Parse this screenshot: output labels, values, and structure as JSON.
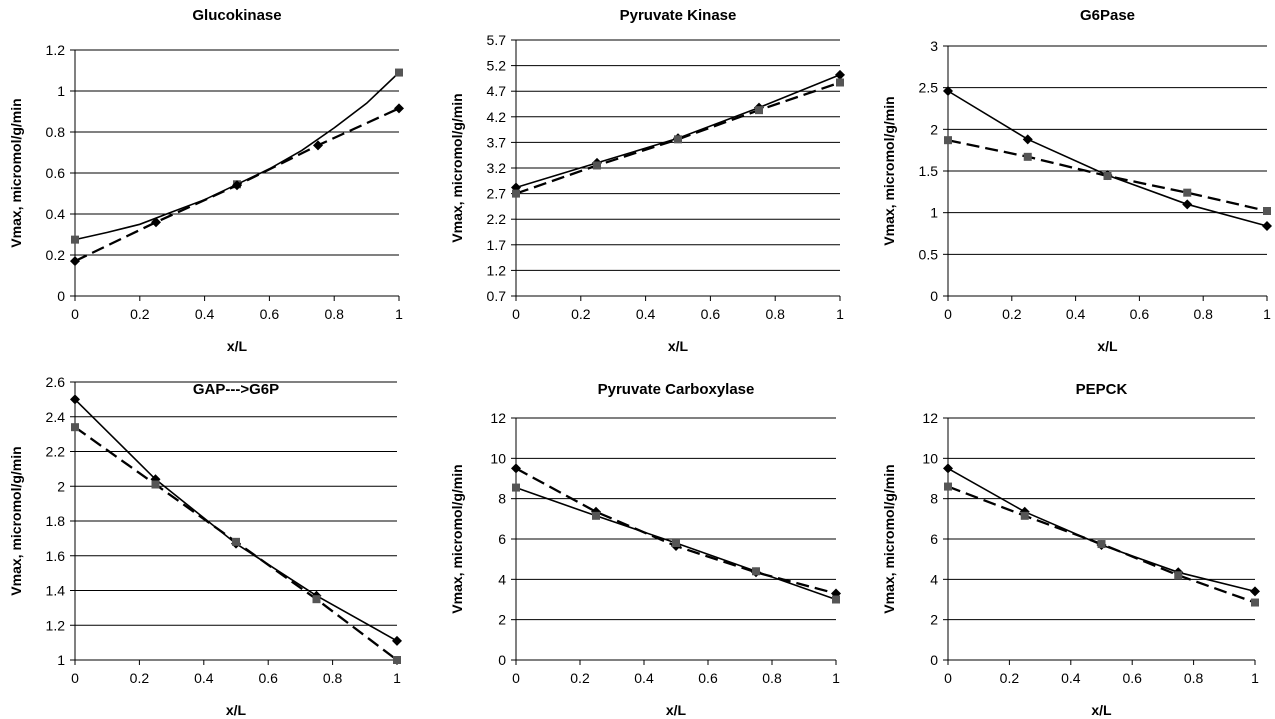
{
  "chart_data": [
    {
      "type": "line",
      "title": "Glucokinase",
      "xlabel": "x/L",
      "ylabel": "Vmax, micromol/g/min",
      "xlim": [
        0,
        1
      ],
      "ylim": [
        0,
        1.2
      ],
      "yticks": [
        "0",
        "0.2",
        "0.4",
        "0.6",
        "0.8",
        "1",
        "1.2"
      ],
      "xticks": [
        "0",
        "0.2",
        "0.4",
        "0.6",
        "0.8",
        "1"
      ],
      "grid": "horizontal",
      "series": [
        {
          "style": "solid",
          "marker": "square",
          "markers_at": [
            0,
            0.25,
            0.5,
            0.75,
            1
          ],
          "x": [
            0,
            0.1,
            0.2,
            0.3,
            0.4,
            0.5,
            0.6,
            0.7,
            0.8,
            0.9,
            1
          ],
          "y": [
            0.275,
            0.31,
            0.35,
            0.41,
            0.47,
            0.545,
            0.62,
            0.71,
            0.82,
            0.94,
            1.09
          ]
        },
        {
          "style": "dashed",
          "marker": "diamond",
          "x": [
            0,
            0.25,
            0.5,
            0.75,
            1
          ],
          "y": [
            0.17,
            0.36,
            0.54,
            0.735,
            0.915
          ]
        }
      ]
    },
    {
      "type": "line",
      "title": "Pyruvate Kinase",
      "xlabel": "x/L",
      "ylabel": "Vmax, micromol/g/min",
      "xlim": [
        0,
        1
      ],
      "ylim": [
        0.7,
        5.7
      ],
      "yticks": [
        "0.7",
        "1.2",
        "1.7",
        "2.2",
        "2.7",
        "3.2",
        "3.7",
        "4.2",
        "4.7",
        "5.2",
        "5.7"
      ],
      "xticks": [
        "0",
        "0.2",
        "0.4",
        "0.6",
        "0.8",
        "1"
      ],
      "grid": "horizontal",
      "series": [
        {
          "style": "solid",
          "marker": "diamond",
          "x": [
            0,
            0.25,
            0.5,
            0.75,
            1
          ],
          "y": [
            2.82,
            3.3,
            3.78,
            4.38,
            5.02
          ]
        },
        {
          "style": "dashed",
          "marker": "square",
          "x": [
            0,
            0.25,
            0.5,
            0.75,
            1
          ],
          "y": [
            2.7,
            3.25,
            3.76,
            4.33,
            4.87
          ]
        }
      ]
    },
    {
      "type": "line",
      "title": "G6Pase",
      "xlabel": "x/L",
      "ylabel": "Vmax, micromol/g/min",
      "xlim": [
        0,
        1
      ],
      "ylim": [
        0,
        3
      ],
      "yticks": [
        "0",
        "0.5",
        "1",
        "1.5",
        "2",
        "2.5",
        "3"
      ],
      "xticks": [
        "0",
        "0.2",
        "0.4",
        "0.6",
        "0.8",
        "1"
      ],
      "grid": "horizontal",
      "series": [
        {
          "style": "solid",
          "marker": "diamond",
          "x": [
            0,
            0.25,
            0.5,
            0.75,
            1
          ],
          "y": [
            2.46,
            1.88,
            1.45,
            1.1,
            0.84
          ]
        },
        {
          "style": "dashed",
          "marker": "square",
          "x": [
            0,
            0.25,
            0.5,
            0.75,
            1
          ],
          "y": [
            1.87,
            1.67,
            1.44,
            1.24,
            1.02
          ]
        }
      ]
    },
    {
      "type": "line",
      "title": "GAP--->G6P",
      "xlabel": "x/L",
      "ylabel": "Vmax, micromol/g/min",
      "xlim": [
        0,
        1
      ],
      "ylim": [
        1,
        2.6
      ],
      "yticks": [
        "1",
        "1.2",
        "1.4",
        "1.6",
        "1.8",
        "2",
        "2.2",
        "2.4",
        "2.6"
      ],
      "xticks": [
        "0",
        "0.2",
        "0.4",
        "0.6",
        "0.8",
        "1"
      ],
      "grid": "horizontal",
      "series": [
        {
          "style": "solid",
          "marker": "diamond",
          "x": [
            0,
            0.25,
            0.5,
            0.75,
            1
          ],
          "y": [
            2.5,
            2.04,
            1.67,
            1.37,
            1.11
          ]
        },
        {
          "style": "dashed",
          "marker": "square",
          "x": [
            0,
            0.25,
            0.5,
            0.75,
            1
          ],
          "y": [
            2.34,
            2.01,
            1.68,
            1.35,
            1.0
          ]
        }
      ]
    },
    {
      "type": "line",
      "title": "Pyruvate Carboxylase",
      "xlabel": "x/L",
      "ylabel": "Vmax, micromol/g/min",
      "xlim": [
        0,
        1
      ],
      "ylim": [
        0,
        12
      ],
      "yticks": [
        "0",
        "2",
        "4",
        "6",
        "8",
        "10",
        "12"
      ],
      "xticks": [
        "0",
        "0.2",
        "0.4",
        "0.6",
        "0.8",
        "1"
      ],
      "grid": "horizontal",
      "series": [
        {
          "style": "dashed",
          "marker": "diamond",
          "x": [
            0,
            0.25,
            0.5,
            0.75,
            1
          ],
          "y": [
            9.5,
            7.35,
            5.65,
            4.35,
            3.3
          ]
        },
        {
          "style": "solid",
          "marker": "square",
          "x": [
            0,
            0.25,
            0.5,
            0.75,
            1
          ],
          "y": [
            8.55,
            7.15,
            5.8,
            4.4,
            3.0
          ]
        }
      ]
    },
    {
      "type": "line",
      "title": "PEPCK",
      "xlabel": "x/L",
      "ylabel": "Vmax, micromol/g/min",
      "xlim": [
        0,
        1
      ],
      "ylim": [
        0,
        12
      ],
      "yticks": [
        "0",
        "2",
        "4",
        "6",
        "8",
        "10",
        "12"
      ],
      "xticks": [
        "0",
        "0.2",
        "0.4",
        "0.6",
        "0.8",
        "1"
      ],
      "grid": "horizontal",
      "series": [
        {
          "style": "solid",
          "marker": "diamond",
          "x": [
            0,
            0.25,
            0.5,
            0.75,
            1
          ],
          "y": [
            9.5,
            7.35,
            5.7,
            4.35,
            3.4
          ]
        },
        {
          "style": "dashed",
          "marker": "square",
          "x": [
            0,
            0.25,
            0.5,
            0.75,
            1
          ],
          "y": [
            8.6,
            7.15,
            5.75,
            4.2,
            2.85
          ]
        }
      ]
    }
  ]
}
